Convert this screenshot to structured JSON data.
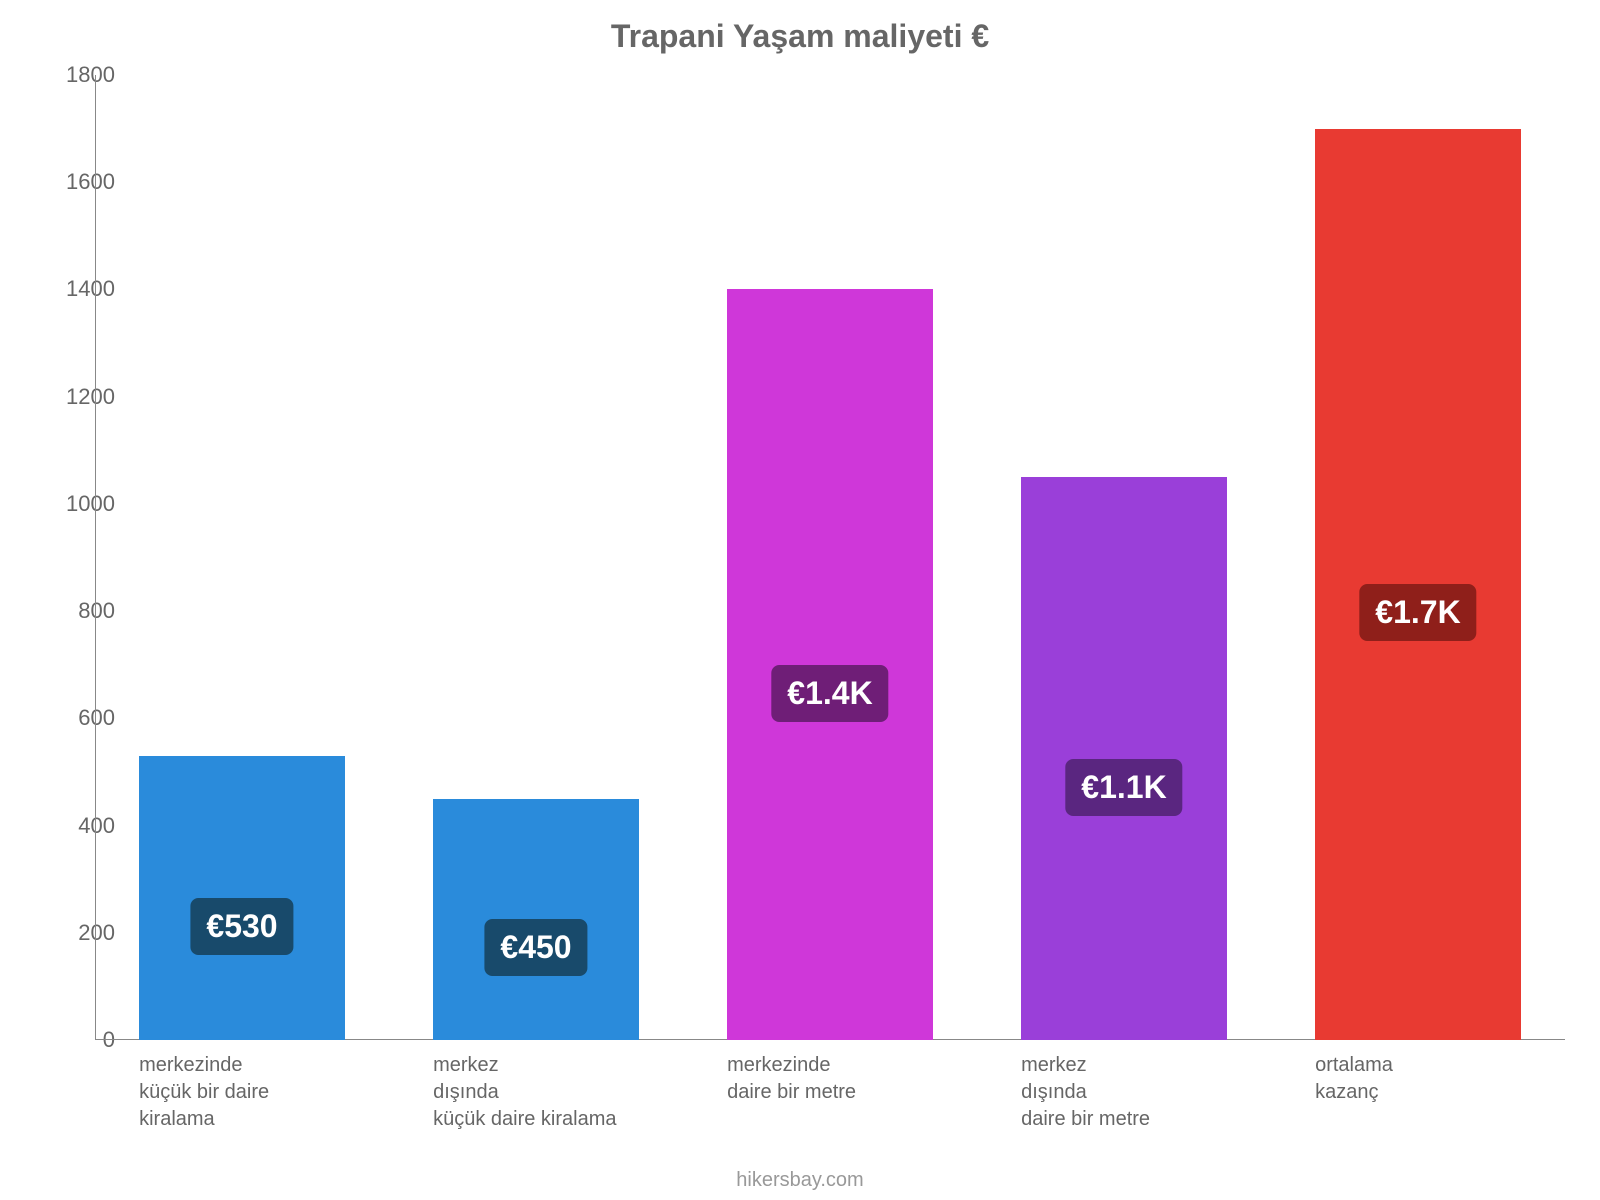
{
  "chart": {
    "type": "bar",
    "title": "Trapani Yaşam maliyeti €",
    "title_fontsize": 32,
    "title_color": "#666666",
    "background_color": "#ffffff",
    "axis_color": "#888888",
    "tick_label_color": "#666666",
    "tick_label_fontsize": 22,
    "x_label_color": "#666666",
    "x_label_fontsize": 20,
    "ylim": [
      0,
      1800
    ],
    "ytick_step": 200,
    "yticks": [
      0,
      200,
      400,
      600,
      800,
      1000,
      1200,
      1400,
      1600,
      1800
    ],
    "bar_width": 0.7,
    "categories": [
      "merkezinde\nküçük bir daire kiralama",
      "merkez\ndışında\nküçük daire kiralama",
      "merkezinde\ndaire bir metre",
      "merkez\ndışında\ndaire bir metre",
      "ortalama\nkazanç"
    ],
    "values": [
      530,
      450,
      1400,
      1050,
      1700
    ],
    "value_labels": [
      "€530",
      "€450",
      "€1.4K",
      "€1.1K",
      "€1.7K"
    ],
    "bar_colors": [
      "#2a8bdb",
      "#2a8bdb",
      "#cf37d9",
      "#9a3fd9",
      "#e83a32"
    ],
    "badge_colors": [
      "#184a6b",
      "#184a6b",
      "#6f1e77",
      "#5a2680",
      "#8f1f1a"
    ],
    "badge_fontsize": 32,
    "attribution": "hikersbay.com",
    "attribution_color": "#999999",
    "attribution_fontsize": 20
  }
}
